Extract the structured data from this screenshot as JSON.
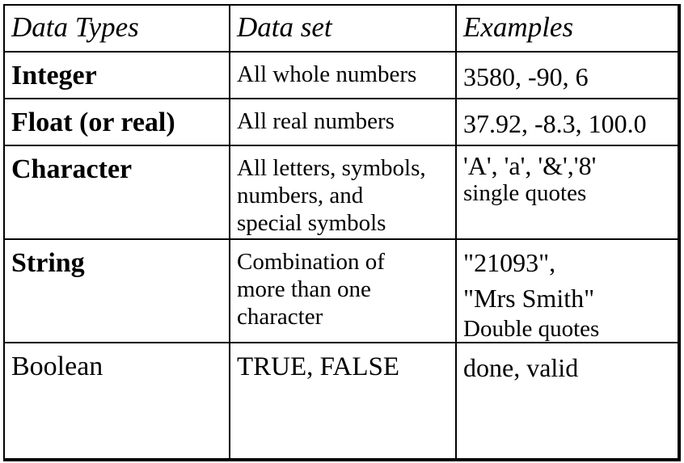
{
  "header": {
    "col1": "Data Types",
    "col2": "Data set",
    "col3": "Examples"
  },
  "rows": [
    {
      "type": "Integer",
      "data_set": "All whole numbers",
      "examples": [
        "3580, -90, 6"
      ]
    },
    {
      "type": "Float (or real)",
      "data_set": "All real numbers",
      "examples": [
        "37.92, -8.3, 100.0"
      ]
    },
    {
      "type": "Character",
      "data_set": [
        "All letters, symbols,",
        "numbers, and",
        "special symbols"
      ],
      "examples": [
        "'A', 'a', '&','8'",
        "single quotes"
      ]
    },
    {
      "type": "String",
      "data_set": [
        "Combination of",
        "more than one",
        "character"
      ],
      "examples": [
        "\"21093\",",
        "\"Mrs Smith\"",
        "Double quotes"
      ]
    },
    {
      "type": "Boolean",
      "data_set": "TRUE, FALSE",
      "examples": [
        "done, valid"
      ]
    }
  ]
}
